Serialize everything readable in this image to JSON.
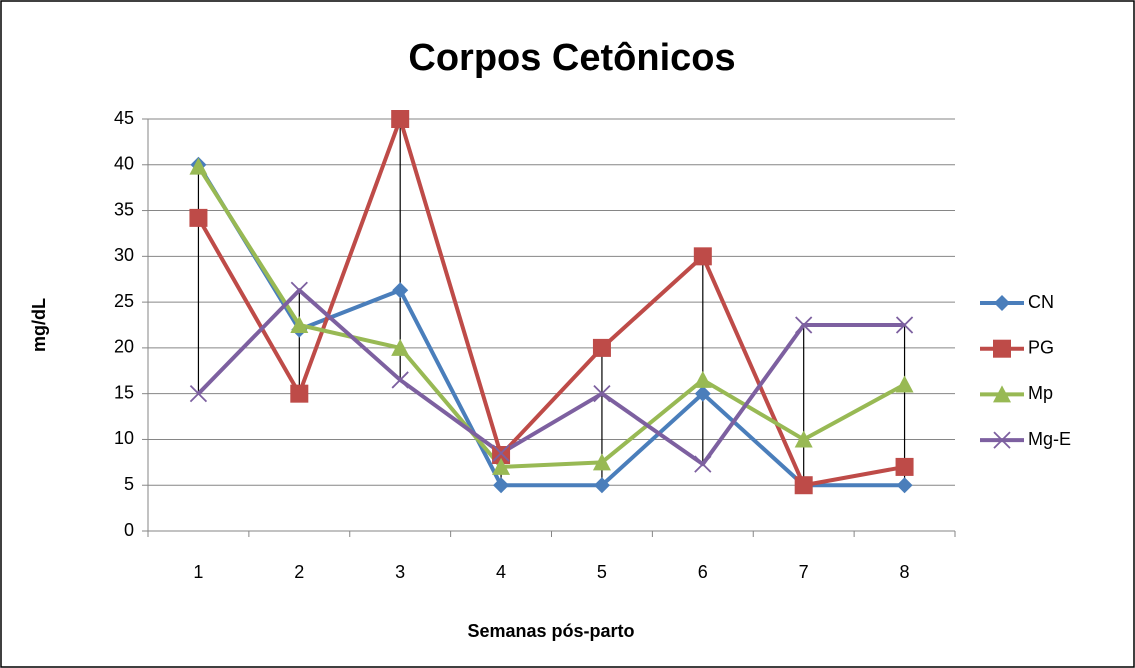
{
  "chart_data": {
    "type": "line",
    "title": "Corpos Cetônicos",
    "x_label": "Semanas pós-parto",
    "y_label": "mg/dL",
    "categories": [
      "1",
      "2",
      "3",
      "4",
      "5",
      "6",
      "7",
      "8"
    ],
    "series": [
      {
        "name": "CN",
        "color": "#4a7ebb",
        "marker": "diamond",
        "values": [
          40,
          22,
          26.3,
          5,
          5,
          15,
          5,
          5
        ]
      },
      {
        "name": "PG",
        "color": "#be4b48",
        "marker": "square",
        "values": [
          34.2,
          15,
          45,
          8.3,
          20,
          30,
          5,
          7
        ]
      },
      {
        "name": "Mp",
        "color": "#98b954",
        "marker": "triangle",
        "values": [
          39.8,
          22.5,
          20,
          7,
          7.5,
          16.5,
          10,
          16
        ]
      },
      {
        "name": "Mg-E",
        "color": "#7d60a0",
        "marker": "x",
        "values": [
          15,
          26.3,
          16.5,
          8.5,
          15,
          7.3,
          22.5,
          22.5
        ]
      }
    ],
    "ylim": [
      0,
      45
    ],
    "yticks": [
      0,
      5,
      10,
      15,
      20,
      25,
      30,
      35,
      40,
      45
    ],
    "grid": true,
    "high_low_lines": true,
    "legend": "right"
  }
}
